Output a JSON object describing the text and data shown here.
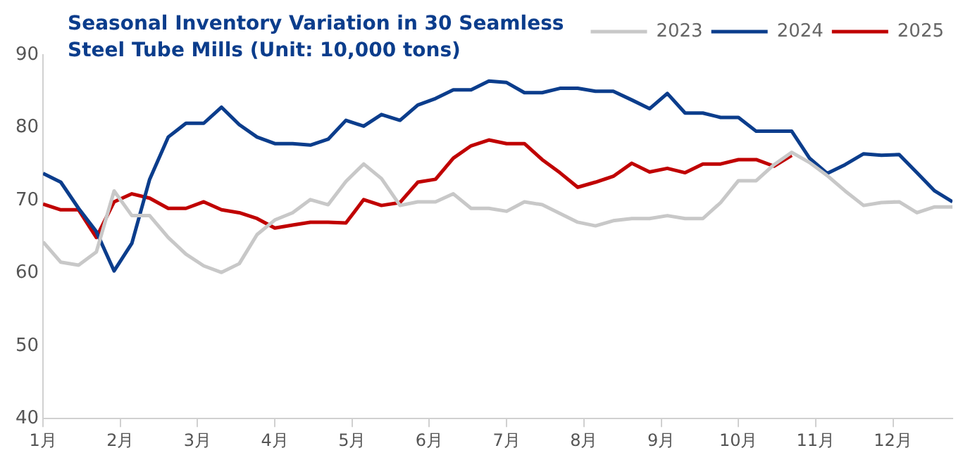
{
  "chart_data": {
    "type": "line",
    "title": "Seasonal Inventory Variation in 30 Seamless Steel Tube Mills (Unit: 10,000 tons)",
    "x": [
      1.0,
      1.23,
      1.46,
      1.69,
      1.92,
      2.15,
      2.38,
      2.62,
      2.85,
      3.08,
      3.31,
      3.54,
      3.77,
      4.0,
      4.23,
      4.46,
      4.69,
      4.92,
      5.15,
      5.38,
      5.62,
      5.85,
      6.08,
      6.31,
      6.54,
      6.77,
      7.0,
      7.23,
      7.46,
      7.69,
      7.92,
      8.15,
      8.38,
      8.62,
      8.85,
      9.08,
      9.31,
      9.54,
      9.77,
      10.0,
      10.23,
      10.46,
      10.69,
      10.92,
      11.15,
      11.38,
      11.62,
      11.85,
      12.08,
      12.31,
      12.54,
      12.77
    ],
    "series": [
      {
        "name": "2023",
        "color": "#c8c8c8",
        "values": [
          64.3,
          61.5,
          61.1,
          62.9,
          71.3,
          67.9,
          67.9,
          64.9,
          62.6,
          61.0,
          60.1,
          61.3,
          65.3,
          67.3,
          68.3,
          70.1,
          69.4,
          72.6,
          75.0,
          73.0,
          69.3,
          69.8,
          69.8,
          70.9,
          68.9,
          68.9,
          68.5,
          69.8,
          69.4,
          68.2,
          67.0,
          66.5,
          67.2,
          67.5,
          67.5,
          67.9,
          67.5,
          67.5,
          69.7,
          72.7,
          72.7,
          74.9,
          76.6,
          75.2,
          73.4,
          71.3,
          69.3,
          69.7,
          69.8,
          68.3,
          69.1,
          69.1
        ]
      },
      {
        "name": "2024",
        "color": "#0b3d8c",
        "values": [
          73.7,
          72.5,
          68.9,
          65.7,
          60.3,
          64.1,
          72.9,
          78.7,
          80.6,
          80.6,
          82.8,
          80.4,
          78.7,
          77.8,
          77.8,
          77.6,
          78.4,
          81.0,
          80.2,
          81.8,
          81.0,
          83.1,
          84.0,
          85.2,
          85.2,
          86.4,
          86.2,
          84.8,
          84.8,
          85.4,
          85.4,
          85.0,
          85.0,
          83.8,
          82.6,
          84.7,
          82.0,
          82.0,
          81.4,
          81.4,
          79.5,
          79.5,
          79.5,
          75.8,
          73.7,
          74.9,
          76.4,
          76.2,
          76.3,
          73.8,
          71.3,
          69.8
        ]
      },
      {
        "name": "2025",
        "color": "#c00000",
        "values": [
          69.5,
          68.7,
          68.7,
          64.9,
          69.8,
          70.9,
          70.3,
          68.9,
          68.9,
          69.8,
          68.7,
          68.3,
          67.5,
          66.2,
          66.6,
          67.0,
          67.0,
          66.9,
          70.1,
          69.3,
          69.7,
          72.5,
          72.9,
          75.8,
          77.5,
          78.3,
          77.8,
          77.8,
          75.6,
          73.8,
          71.8,
          72.5,
          73.3,
          75.1,
          73.9,
          74.4,
          73.8,
          75.0,
          75.0,
          75.6,
          75.6,
          74.7,
          76.2,
          null,
          null,
          null,
          null,
          null,
          null,
          null,
          null,
          null
        ]
      }
    ],
    "xlim": [
      1,
      12.77
    ],
    "xticks": [
      {
        "value": 1,
        "label": "1月"
      },
      {
        "value": 2,
        "label": "2月"
      },
      {
        "value": 3,
        "label": "3月"
      },
      {
        "value": 4,
        "label": "4月"
      },
      {
        "value": 5,
        "label": "5月"
      },
      {
        "value": 6,
        "label": "6月"
      },
      {
        "value": 7,
        "label": "7月"
      },
      {
        "value": 8,
        "label": "8月"
      },
      {
        "value": 9,
        "label": "9月"
      },
      {
        "value": 10,
        "label": "10月"
      },
      {
        "value": 11,
        "label": "11月"
      },
      {
        "value": 12,
        "label": "12月"
      }
    ],
    "ylim": [
      40,
      90
    ],
    "yticks": [
      40,
      50,
      60,
      70,
      80,
      90
    ],
    "grid": false,
    "legend": "top right",
    "marker": "none",
    "line_style": "solid"
  }
}
